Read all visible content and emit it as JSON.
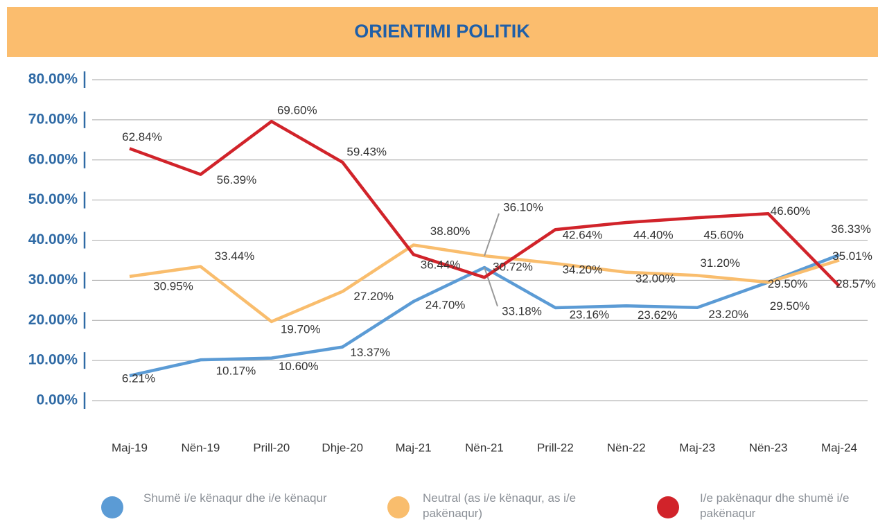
{
  "chart_data": {
    "type": "line",
    "title": "ORIENTIMI POLITIK",
    "categories": [
      "Maj-19",
      "Nën-19",
      "Prill-20",
      "Dhje-20",
      "Maj-21",
      "Nën-21",
      "Prill-22",
      "Nën-22",
      "Maj-23",
      "Nën-23",
      "Maj-24"
    ],
    "series": [
      {
        "name": "Shumë i/e kënaqur dhe i/e kënaqur",
        "color": "#5b9bd5",
        "values": [
          6.21,
          10.17,
          10.6,
          13.37,
          24.7,
          33.18,
          23.16,
          23.62,
          23.2,
          29.5,
          36.33
        ],
        "value_labels": [
          "6.21%",
          "10.17%",
          "10.60%",
          "13.37%",
          "24.70%",
          "33.18%",
          "23.16%",
          "23.62%",
          "23.20%",
          "29.50%",
          "36.33%"
        ]
      },
      {
        "name": "Neutral (as i/e kënaqur, as i/e pakënaqur)",
        "color": "#f9bd6d",
        "values": [
          30.95,
          33.44,
          19.7,
          27.2,
          38.8,
          36.1,
          34.2,
          32.0,
          31.2,
          29.5,
          35.01
        ],
        "value_labels": [
          "30.95%",
          "33.44%",
          "19.70%",
          "27.20%",
          "38.80%",
          "36.10%",
          "34.20%",
          "32.00%",
          "31.20%",
          "29.50%",
          "35.01%"
        ]
      },
      {
        "name": "I/e pakënaqur dhe shumë i/e pakënaqur",
        "color": "#d1232a",
        "values": [
          62.84,
          56.39,
          69.6,
          59.43,
          36.44,
          30.72,
          42.64,
          44.4,
          45.6,
          46.6,
          28.57
        ],
        "value_labels": [
          "62.84%",
          "56.39%",
          "69.60%",
          "59.43%",
          "36.44%",
          "30.72%",
          "42.64%",
          "44.40%",
          "45.60%",
          "46.60%",
          "28.57%"
        ]
      }
    ],
    "ylim": [
      0,
      80
    ],
    "yticks": [
      {
        "value": 0,
        "label": "0.00%"
      },
      {
        "value": 10,
        "label": "10.00%"
      },
      {
        "value": 20,
        "label": "20.00%"
      },
      {
        "value": 30,
        "label": "30.00%"
      },
      {
        "value": 40,
        "label": "40.00%"
      },
      {
        "value": 50,
        "label": "50.00%"
      },
      {
        "value": 60,
        "label": "60.00%"
      },
      {
        "value": 70,
        "label": "70.00%"
      },
      {
        "value": 80,
        "label": "80.00%"
      }
    ],
    "grid": true
  }
}
